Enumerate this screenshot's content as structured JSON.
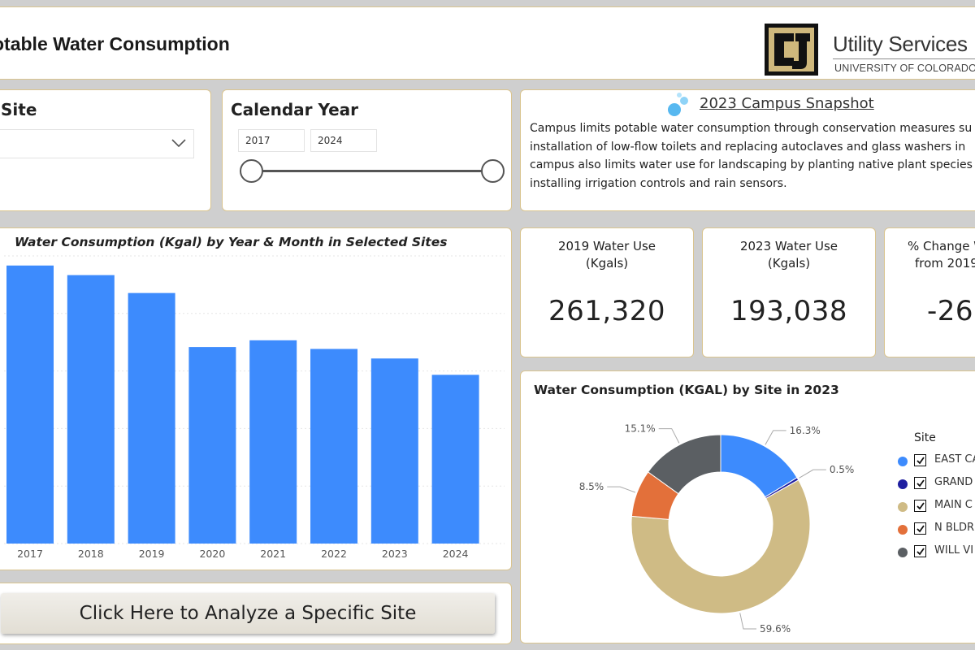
{
  "header": {
    "title": "otable Water Consumption",
    "logo_name": "Utility Services",
    "logo_sub": "UNIVERSITY OF COLORADO"
  },
  "site_slicer": {
    "label": "Site",
    "selected": ""
  },
  "year_slicer": {
    "label": "Calendar Year",
    "from": "2017",
    "to": "2024"
  },
  "snapshot": {
    "title": "2023 Campus Snapshot",
    "lines": [
      "Campus limits potable water consumption through conservation measures su",
      "installation of low-flow toilets and replacing autoclaves and glass washers in",
      "campus also limits water use for landscaping by planting native plant species",
      "installing irrigation controls and rain sensors."
    ]
  },
  "kpis": [
    {
      "label_line1": "2019 Water Use",
      "label_line2": "(Kgals)",
      "value": "261,320"
    },
    {
      "label_line1": "2023 Water Use",
      "label_line2": "(Kgals)",
      "value": "193,038"
    },
    {
      "label_line1": "% Change W",
      "label_line2": "from 2019",
      "value": "-26."
    }
  ],
  "bar_chart": {
    "title": "Water Consumption (Kgal) by Year & Month in Selected Sites",
    "chart_data": {
      "type": "bar",
      "categories": [
        "2017",
        "2018",
        "2019",
        "2020",
        "2021",
        "2022",
        "2023",
        "2024"
      ],
      "values": [
        290000,
        280000,
        261320,
        205000,
        212000,
        203000,
        193038,
        176000
      ],
      "ylim": [
        0,
        300000
      ],
      "color": "#3d8bfd",
      "grid": true
    }
  },
  "pie_chart": {
    "title": "Water Consumption (KGAL) by Site in 2023",
    "chart_data": {
      "type": "pie",
      "donut": true,
      "slices": [
        {
          "label": "EAST CA",
          "value": 16.3,
          "pct_label": "16.3%",
          "color": "#3d8bfd"
        },
        {
          "label": "GRAND",
          "value": 0.5,
          "pct_label": "0.5%",
          "color": "#1f1fa0"
        },
        {
          "label": "MAIN C",
          "value": 59.6,
          "pct_label": "59.6%",
          "color": "#cfbb85"
        },
        {
          "label": "N BLDR",
          "value": 8.5,
          "pct_label": "8.5%",
          "color": "#e3703a"
        },
        {
          "label": "WILL VI",
          "value": 15.1,
          "pct_label": "15.1%",
          "color": "#5b5f63"
        }
      ]
    },
    "legend_title": "Site"
  },
  "analyze_button": {
    "label": "Click Here to Analyze a Specific Site"
  }
}
